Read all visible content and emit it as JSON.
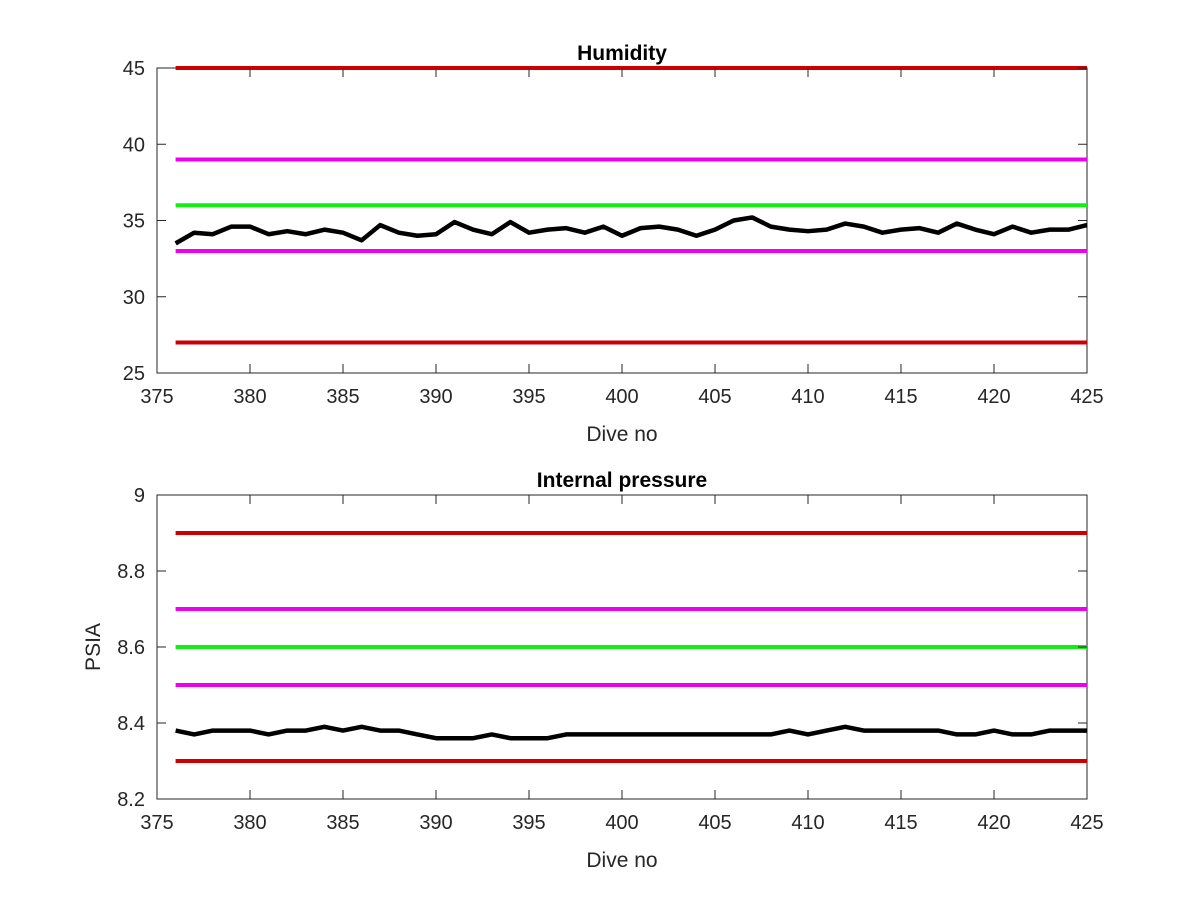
{
  "chart_data": [
    {
      "type": "line",
      "title": "Humidity",
      "xlabel": "Dive no",
      "ylabel": "",
      "xlim": [
        375,
        425
      ],
      "ylim": [
        25,
        45
      ],
      "xticks": [
        375,
        380,
        385,
        390,
        395,
        400,
        405,
        410,
        415,
        420,
        425
      ],
      "yticks": [
        25,
        30,
        35,
        40,
        45
      ],
      "grid": false,
      "reference_lines": [
        {
          "y": 45,
          "color": "#cc0000"
        },
        {
          "y": 39,
          "color": "#ee00ee"
        },
        {
          "y": 36,
          "color": "#11ee11"
        },
        {
          "y": 33,
          "color": "#ee00ee"
        },
        {
          "y": 27,
          "color": "#cc0000"
        }
      ],
      "series": [
        {
          "color": "#000000",
          "x": [
            376,
            377,
            378,
            379,
            380,
            381,
            382,
            383,
            384,
            385,
            386,
            387,
            388,
            389,
            390,
            391,
            392,
            393,
            394,
            395,
            396,
            397,
            398,
            399,
            400,
            401,
            402,
            403,
            404,
            405,
            406,
            407,
            408,
            409,
            410,
            411,
            412,
            413,
            414,
            415,
            416,
            417,
            418,
            419,
            420,
            421,
            422,
            423,
            424,
            425
          ],
          "y": [
            33.5,
            34.2,
            34.1,
            34.6,
            34.6,
            34.1,
            34.3,
            34.1,
            34.4,
            34.2,
            33.7,
            34.7,
            34.2,
            34.0,
            34.1,
            34.9,
            34.4,
            34.1,
            34.9,
            34.2,
            34.4,
            34.5,
            34.2,
            34.6,
            34.0,
            34.5,
            34.6,
            34.4,
            34.0,
            34.4,
            35.0,
            35.2,
            34.6,
            34.4,
            34.3,
            34.4,
            34.8,
            34.6,
            34.2,
            34.4,
            34.5,
            34.2,
            34.8,
            34.4,
            34.1,
            34.6,
            34.2,
            34.4,
            34.4,
            34.7
          ]
        }
      ]
    },
    {
      "type": "line",
      "title": "Internal pressure",
      "xlabel": "Dive no",
      "ylabel": "PSIA",
      "xlim": [
        375,
        425
      ],
      "ylim": [
        8.2,
        9
      ],
      "xticks": [
        375,
        380,
        385,
        390,
        395,
        400,
        405,
        410,
        415,
        420,
        425
      ],
      "yticks": [
        8.2,
        8.4,
        8.6,
        8.8,
        9
      ],
      "grid": false,
      "reference_lines": [
        {
          "y": 8.9,
          "color": "#cc0000"
        },
        {
          "y": 8.7,
          "color": "#ee00ee"
        },
        {
          "y": 8.6,
          "color": "#11ee11"
        },
        {
          "y": 8.5,
          "color": "#ee00ee"
        },
        {
          "y": 8.3,
          "color": "#cc0000"
        }
      ],
      "series": [
        {
          "color": "#000000",
          "x": [
            376,
            377,
            378,
            379,
            380,
            381,
            382,
            383,
            384,
            385,
            386,
            387,
            388,
            389,
            390,
            391,
            392,
            393,
            394,
            395,
            396,
            397,
            398,
            399,
            400,
            401,
            402,
            403,
            404,
            405,
            406,
            407,
            408,
            409,
            410,
            411,
            412,
            413,
            414,
            415,
            416,
            417,
            418,
            419,
            420,
            421,
            422,
            423,
            424,
            425
          ],
          "y": [
            8.38,
            8.37,
            8.38,
            8.38,
            8.38,
            8.37,
            8.38,
            8.38,
            8.39,
            8.38,
            8.39,
            8.38,
            8.38,
            8.37,
            8.36,
            8.36,
            8.36,
            8.37,
            8.36,
            8.36,
            8.36,
            8.37,
            8.37,
            8.37,
            8.37,
            8.37,
            8.37,
            8.37,
            8.37,
            8.37,
            8.37,
            8.37,
            8.37,
            8.38,
            8.37,
            8.38,
            8.39,
            8.38,
            8.38,
            8.38,
            8.38,
            8.38,
            8.37,
            8.37,
            8.38,
            8.37,
            8.37,
            8.38,
            8.38,
            8.38
          ]
        }
      ]
    }
  ]
}
